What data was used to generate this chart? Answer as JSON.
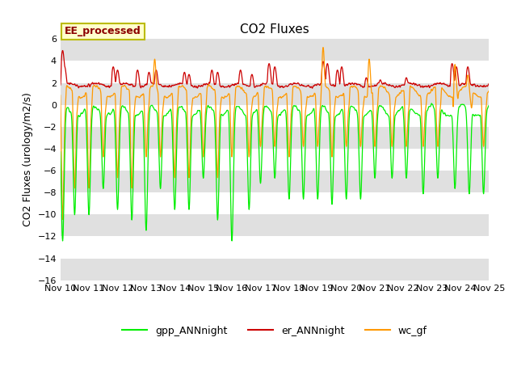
{
  "title": "CO2 Fluxes",
  "ylabel": "CO2 Fluxes (urology/m2/s)",
  "ylim": [
    -16,
    6
  ],
  "yticks": [
    -16,
    -14,
    -12,
    -10,
    -8,
    -6,
    -4,
    -2,
    0,
    2,
    4,
    6
  ],
  "xtick_labels": [
    "Nov 10",
    "Nov 11",
    "Nov 12",
    "Nov 13",
    "Nov 14",
    "Nov 15",
    "Nov 16",
    "Nov 17",
    "Nov 18",
    "Nov 19",
    "Nov 20",
    "Nov 21",
    "Nov 22",
    "Nov 23",
    "Nov 24",
    "Nov 25"
  ],
  "color_gpp": "#00ee00",
  "color_er": "#cc0000",
  "color_wc": "#ff9900",
  "legend_box_label": "EE_processed",
  "legend_box_facecolor": "#ffffcc",
  "legend_box_edgecolor": "#bbbb00",
  "legend_labels": [
    "gpp_ANNnight",
    "er_ANNnight",
    "wc_gf"
  ],
  "bg_color": "#ffffff",
  "plot_bg_color": "#ffffff",
  "gray_band_color": "#e0e0e0",
  "title_fontsize": 11,
  "axis_label_fontsize": 9,
  "tick_fontsize": 8,
  "n_points": 1500
}
